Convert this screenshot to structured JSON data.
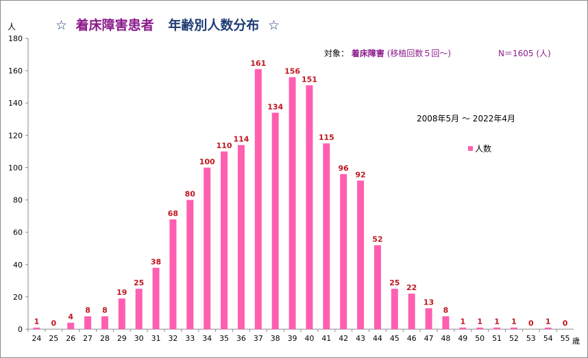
{
  "title": {
    "star_left": "☆",
    "part1": "着床障害患者",
    "part2": "年齢別人数分布",
    "star_right": "☆"
  },
  "subject": {
    "prefix": "対象：",
    "name": "着床障害",
    "suffix": "(移植回数５回～)"
  },
  "total": "N＝1605 (人)",
  "period": "2008年5月 ～ 2022年4月",
  "y_unit": "人",
  "x_unit": "歳",
  "colors": {
    "bar": "#ff5fb0",
    "data_label": "#c0161f",
    "title_main": "#8b1a8b",
    "title_sub": "#1f3b73",
    "subject_name": "#8b1a8b",
    "total": "#8b1a8b"
  },
  "chart_data": {
    "type": "bar",
    "categories": [
      "24",
      "25",
      "26",
      "27",
      "28",
      "29",
      "30",
      "31",
      "32",
      "33",
      "34",
      "35",
      "36",
      "37",
      "38",
      "39",
      "40",
      "41",
      "42",
      "43",
      "44",
      "45",
      "46",
      "47",
      "48",
      "49",
      "50",
      "51",
      "52",
      "53",
      "54",
      "55"
    ],
    "series": [
      {
        "name": "人数",
        "values": [
          1,
          0,
          4,
          8,
          8,
          19,
          25,
          38,
          68,
          80,
          100,
          110,
          114,
          161,
          134,
          156,
          151,
          115,
          96,
          92,
          52,
          25,
          22,
          13,
          8,
          1,
          1,
          1,
          1,
          0,
          1,
          0
        ]
      }
    ],
    "ylim": [
      0,
      180
    ],
    "yticks": [
      0,
      20,
      40,
      60,
      80,
      100,
      120,
      140,
      160,
      180
    ],
    "legend_position": "right",
    "grid": false
  }
}
